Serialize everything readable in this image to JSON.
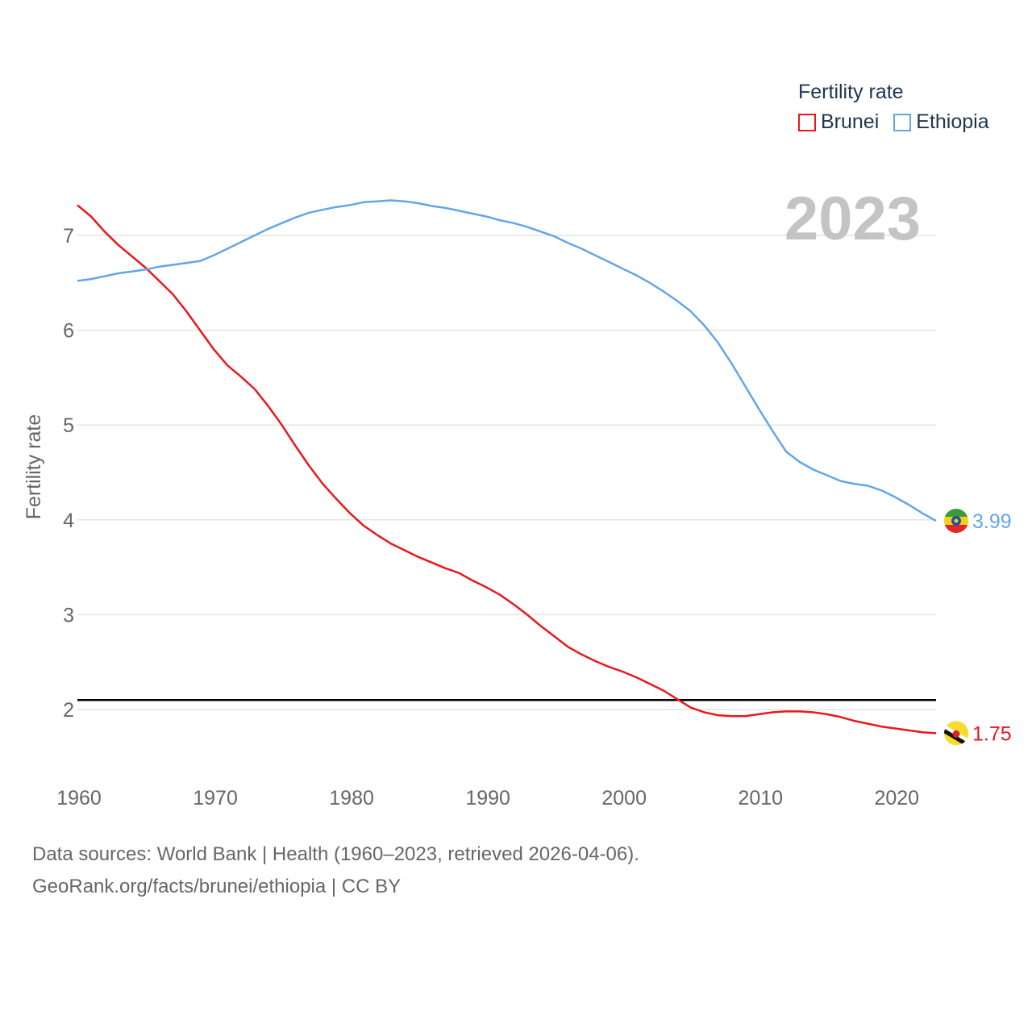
{
  "legend": {
    "title": "Fertility rate",
    "items": [
      {
        "label": "Brunei",
        "color": "#e8191c"
      },
      {
        "label": "Ethiopia",
        "color": "#64a6e8"
      }
    ]
  },
  "current_year": "2023",
  "source": {
    "line1": "Data sources: World Bank | Health (1960–2023, retrieved 2026-04-06).",
    "line2": "GeoRank.org/facts/brunei/ethiopia | CC BY"
  },
  "chart_data": {
    "type": "line",
    "title": "",
    "xlabel": "",
    "ylabel": "Fertility rate",
    "xlim": [
      1960,
      2023
    ],
    "ylim": [
      1.3,
      7.5
    ],
    "x_ticks": [
      1960,
      1970,
      1980,
      1990,
      2000,
      2010,
      2020
    ],
    "y_ticks": [
      2,
      3,
      4,
      5,
      6,
      7
    ],
    "grid": true,
    "legend_position": "top-right",
    "reference_line": {
      "y": 2.1,
      "color": "#000000"
    },
    "series": [
      {
        "name": "Brunei",
        "color": "#e8191c",
        "end_label": "1.75",
        "flag": "brunei-flag",
        "points": [
          [
            1960,
            7.32
          ],
          [
            1961,
            7.2
          ],
          [
            1962,
            7.04
          ],
          [
            1963,
            6.9
          ],
          [
            1964,
            6.78
          ],
          [
            1965,
            6.66
          ],
          [
            1966,
            6.52
          ],
          [
            1967,
            6.38
          ],
          [
            1968,
            6.2
          ],
          [
            1969,
            6.0
          ],
          [
            1970,
            5.8
          ],
          [
            1971,
            5.63
          ],
          [
            1972,
            5.51
          ],
          [
            1973,
            5.38
          ],
          [
            1974,
            5.2
          ],
          [
            1975,
            5.0
          ],
          [
            1976,
            4.78
          ],
          [
            1977,
            4.57
          ],
          [
            1978,
            4.38
          ],
          [
            1979,
            4.22
          ],
          [
            1980,
            4.07
          ],
          [
            1981,
            3.94
          ],
          [
            1982,
            3.84
          ],
          [
            1983,
            3.75
          ],
          [
            1984,
            3.68
          ],
          [
            1985,
            3.61
          ],
          [
            1986,
            3.55
          ],
          [
            1987,
            3.49
          ],
          [
            1988,
            3.44
          ],
          [
            1989,
            3.36
          ],
          [
            1990,
            3.29
          ],
          [
            1991,
            3.21
          ],
          [
            1992,
            3.11
          ],
          [
            1993,
            3.0
          ],
          [
            1994,
            2.88
          ],
          [
            1995,
            2.77
          ],
          [
            1996,
            2.66
          ],
          [
            1997,
            2.58
          ],
          [
            1998,
            2.51
          ],
          [
            1999,
            2.45
          ],
          [
            2000,
            2.4
          ],
          [
            2001,
            2.34
          ],
          [
            2002,
            2.27
          ],
          [
            2003,
            2.2
          ],
          [
            2004,
            2.11
          ],
          [
            2005,
            2.02
          ],
          [
            2006,
            1.97
          ],
          [
            2007,
            1.94
          ],
          [
            2008,
            1.93
          ],
          [
            2009,
            1.93
          ],
          [
            2010,
            1.95
          ],
          [
            2011,
            1.97
          ],
          [
            2012,
            1.98
          ],
          [
            2013,
            1.98
          ],
          [
            2014,
            1.97
          ],
          [
            2015,
            1.95
          ],
          [
            2016,
            1.92
          ],
          [
            2017,
            1.88
          ],
          [
            2018,
            1.85
          ],
          [
            2019,
            1.82
          ],
          [
            2020,
            1.8
          ],
          [
            2021,
            1.78
          ],
          [
            2022,
            1.76
          ],
          [
            2023,
            1.75
          ]
        ]
      },
      {
        "name": "Ethiopia",
        "color": "#64a6e8",
        "end_label": "3.99",
        "flag": "ethiopia-flag",
        "points": [
          [
            1960,
            6.52
          ],
          [
            1961,
            6.54
          ],
          [
            1962,
            6.57
          ],
          [
            1963,
            6.6
          ],
          [
            1964,
            6.62
          ],
          [
            1965,
            6.64
          ],
          [
            1966,
            6.67
          ],
          [
            1967,
            6.69
          ],
          [
            1968,
            6.71
          ],
          [
            1969,
            6.73
          ],
          [
            1970,
            6.79
          ],
          [
            1971,
            6.86
          ],
          [
            1972,
            6.93
          ],
          [
            1973,
            7.0
          ],
          [
            1974,
            7.07
          ],
          [
            1975,
            7.13
          ],
          [
            1976,
            7.19
          ],
          [
            1977,
            7.24
          ],
          [
            1978,
            7.27
          ],
          [
            1979,
            7.3
          ],
          [
            1980,
            7.32
          ],
          [
            1981,
            7.35
          ],
          [
            1982,
            7.36
          ],
          [
            1983,
            7.37
          ],
          [
            1984,
            7.36
          ],
          [
            1985,
            7.34
          ],
          [
            1986,
            7.31
          ],
          [
            1987,
            7.29
          ],
          [
            1988,
            7.26
          ],
          [
            1989,
            7.23
          ],
          [
            1990,
            7.2
          ],
          [
            1991,
            7.16
          ],
          [
            1992,
            7.13
          ],
          [
            1993,
            7.09
          ],
          [
            1994,
            7.04
          ],
          [
            1995,
            6.99
          ],
          [
            1996,
            6.92
          ],
          [
            1997,
            6.86
          ],
          [
            1998,
            6.79
          ],
          [
            1999,
            6.72
          ],
          [
            2000,
            6.65
          ],
          [
            2001,
            6.58
          ],
          [
            2002,
            6.5
          ],
          [
            2003,
            6.41
          ],
          [
            2004,
            6.31
          ],
          [
            2005,
            6.2
          ],
          [
            2006,
            6.05
          ],
          [
            2007,
            5.87
          ],
          [
            2008,
            5.65
          ],
          [
            2009,
            5.41
          ],
          [
            2010,
            5.17
          ],
          [
            2011,
            4.94
          ],
          [
            2012,
            4.72
          ],
          [
            2013,
            4.61
          ],
          [
            2014,
            4.53
          ],
          [
            2015,
            4.47
          ],
          [
            2016,
            4.41
          ],
          [
            2017,
            4.38
          ],
          [
            2018,
            4.36
          ],
          [
            2019,
            4.31
          ],
          [
            2020,
            4.24
          ],
          [
            2021,
            4.16
          ],
          [
            2022,
            4.07
          ],
          [
            2023,
            3.99
          ]
        ]
      }
    ]
  }
}
